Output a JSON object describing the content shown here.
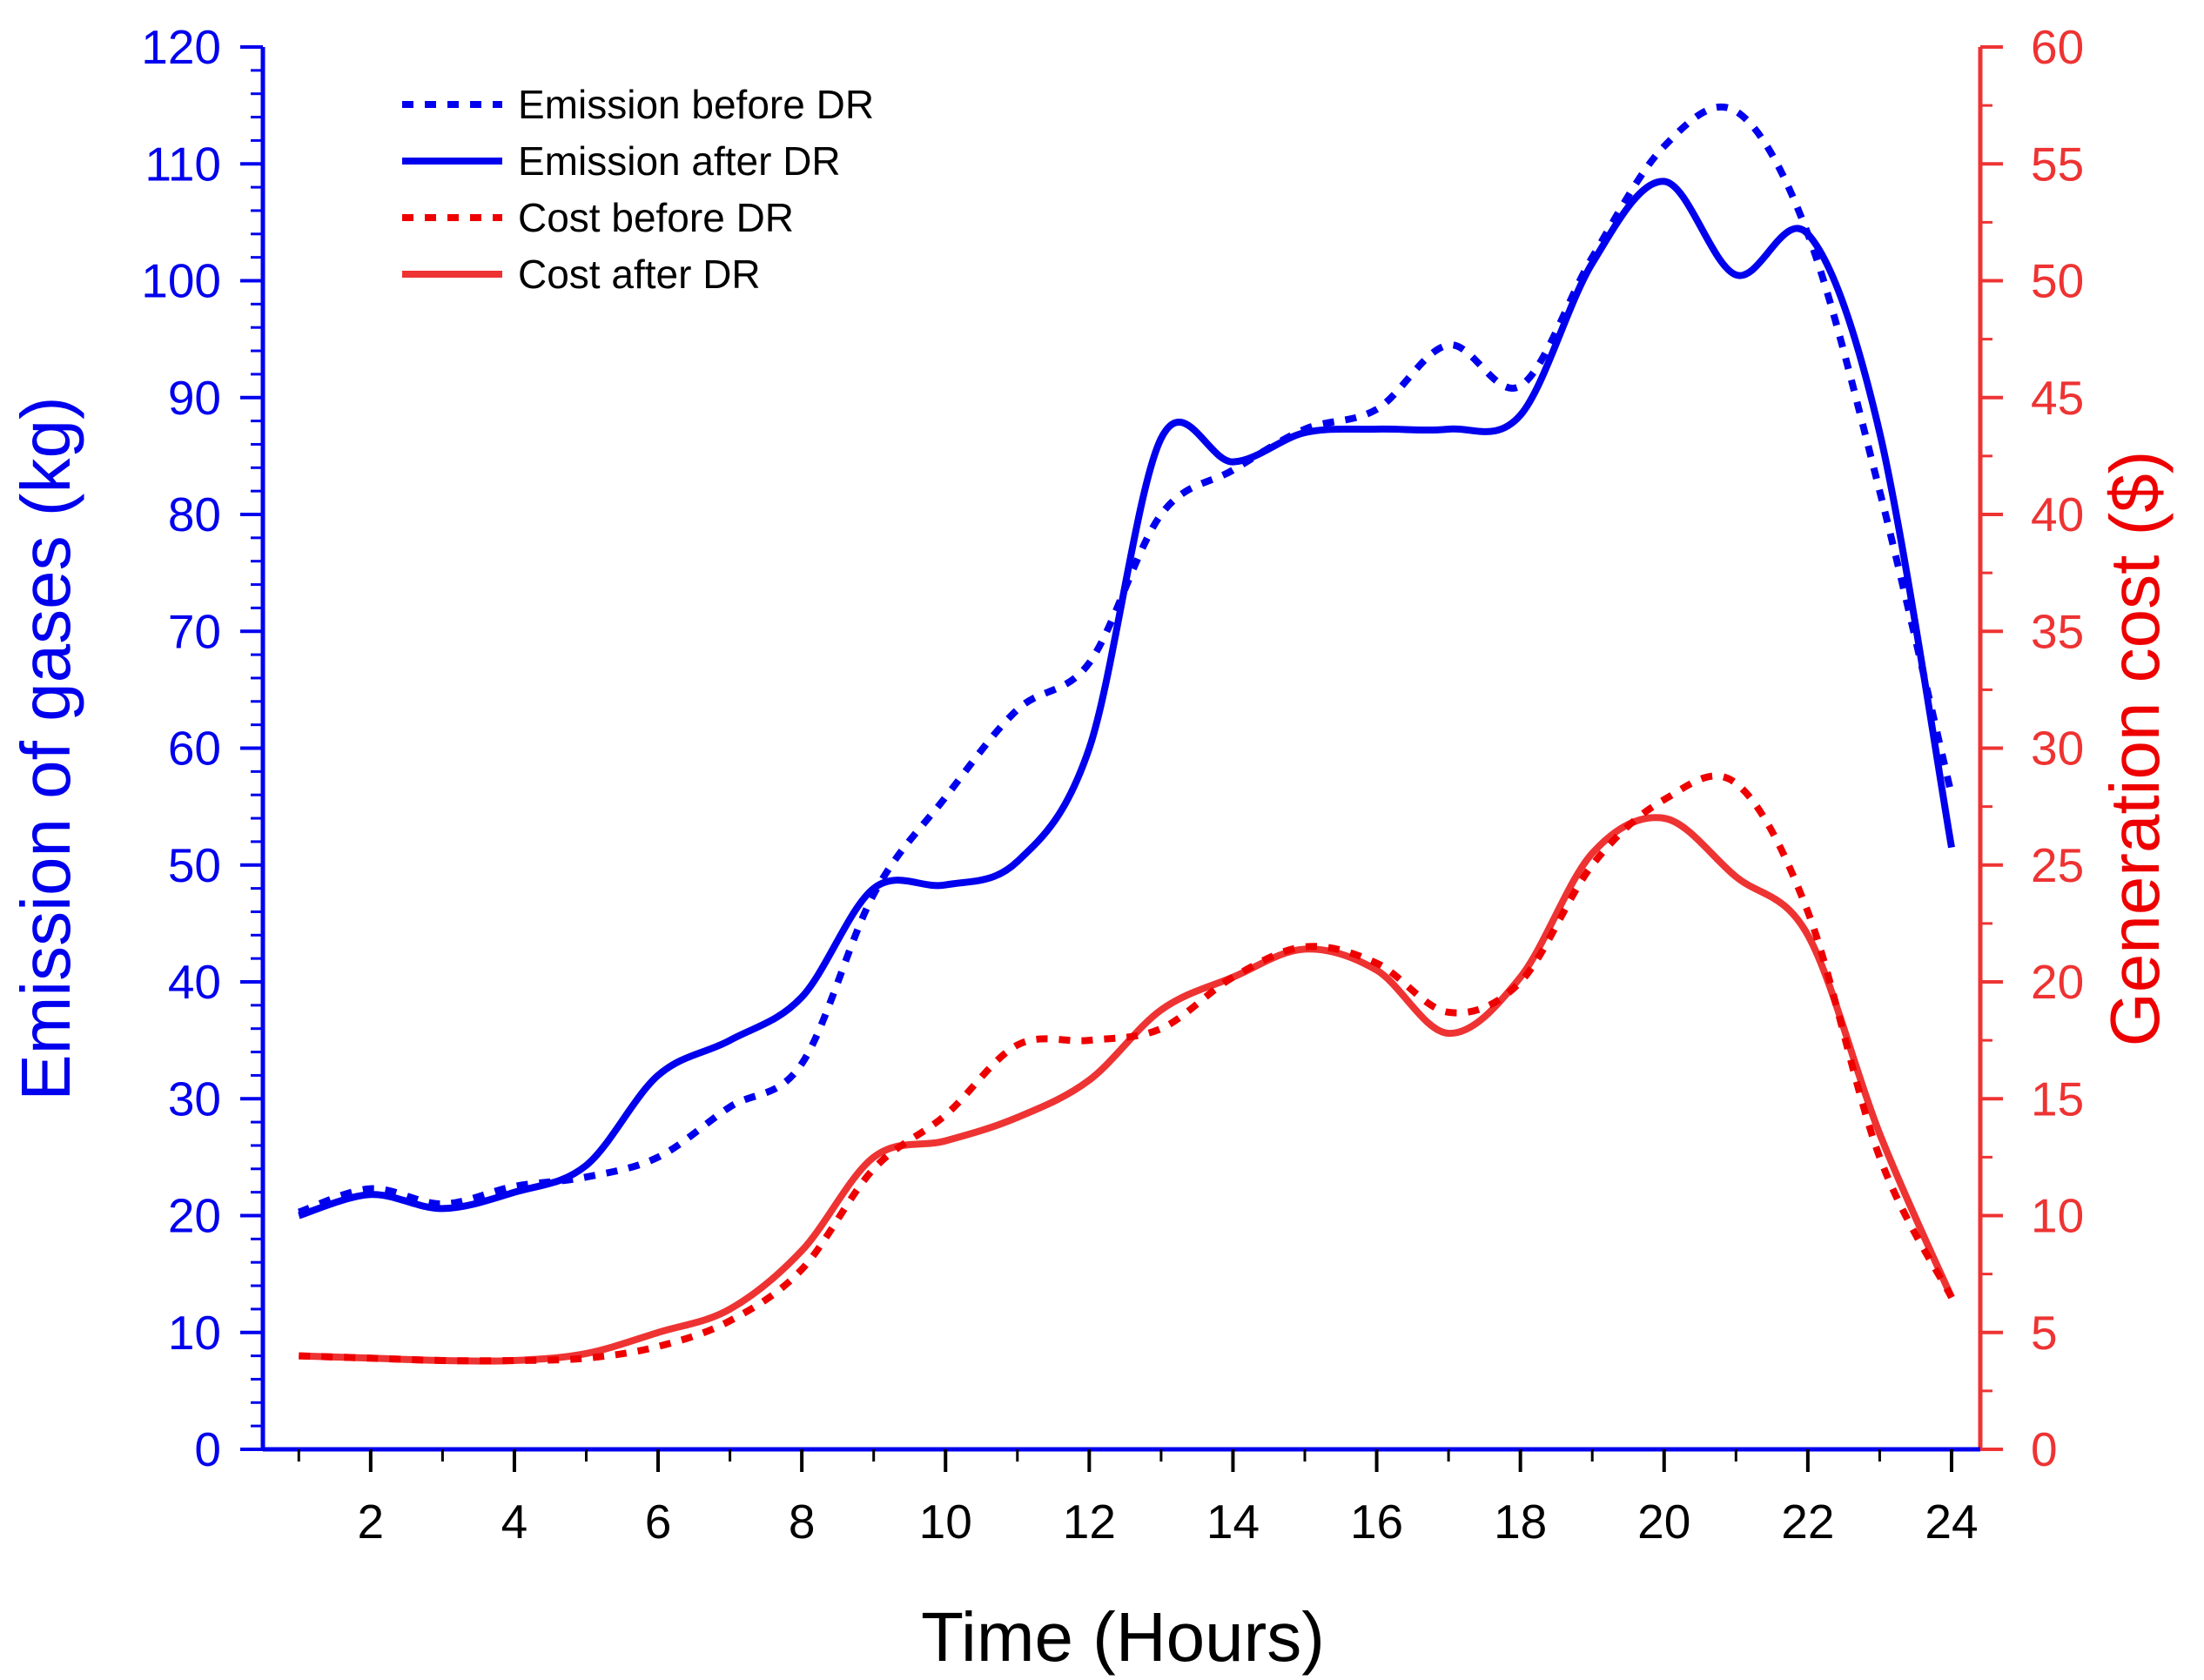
{
  "chart_data": {
    "type": "line",
    "title": "",
    "xlabel": "Time (Hours)",
    "ylabel_left": "Emission of  gases (kg)",
    "ylabel_right": "Generation cost ($)",
    "x": [
      1,
      2,
      3,
      4,
      5,
      6,
      7,
      8,
      9,
      10,
      11,
      12,
      13,
      14,
      15,
      16,
      17,
      18,
      19,
      20,
      21,
      22,
      23,
      24
    ],
    "xlim": [
      0.5,
      24.4
    ],
    "xticks": [
      "2",
      "4",
      "6",
      "8",
      "10",
      "12",
      "14",
      "16",
      "18",
      "20",
      "22",
      "24"
    ],
    "ylim_left": [
      0,
      120
    ],
    "yticks_left": [
      "0",
      "10",
      "20",
      "30",
      "40",
      "50",
      "60",
      "70",
      "80",
      "90",
      "100",
      "110",
      "120"
    ],
    "ylim_right": [
      0,
      60
    ],
    "yticks_right": [
      "0",
      "5",
      "10",
      "15",
      "20",
      "25",
      "30",
      "35",
      "40",
      "45",
      "50",
      "55",
      "60"
    ],
    "grid": false,
    "legend_position": "top-left",
    "series": [
      {
        "name": "Emission before DR",
        "axis": "left",
        "style": "dotted",
        "color": "#0000ee",
        "values": [
          20.3,
          22.3,
          21.0,
          22.5,
          23.3,
          25.0,
          29.3,
          33.0,
          47.5,
          55.8,
          63.3,
          67.3,
          80.0,
          83.8,
          87.3,
          89.0,
          94.5,
          91.0,
          102.0,
          111.5,
          114.5,
          104.0,
          82.0,
          56.0
        ]
      },
      {
        "name": "Emission after DR",
        "axis": "left",
        "style": "solid",
        "color": "#0000ee",
        "values": [
          20.0,
          21.8,
          20.6,
          22.0,
          24.3,
          32.0,
          35.0,
          38.7,
          48.0,
          48.3,
          50.3,
          60.0,
          86.5,
          84.5,
          87.0,
          87.3,
          87.3,
          88.5,
          101.5,
          108.5,
          100.5,
          104.0,
          87.0,
          51.5
        ]
      },
      {
        "name": "Cost before DR",
        "axis": "right",
        "style": "dotted",
        "color": "#ee0000",
        "values": [
          4.0,
          3.9,
          3.8,
          3.8,
          3.9,
          4.4,
          5.5,
          7.7,
          12.0,
          14.3,
          17.3,
          17.5,
          18.0,
          20.2,
          21.5,
          20.8,
          18.7,
          20.0,
          25.0,
          27.8,
          28.5,
          23.0,
          12.5,
          6.5
        ]
      },
      {
        "name": "Cost after DR",
        "axis": "right",
        "style": "solid",
        "color": "#ee3333",
        "values": [
          4.0,
          3.9,
          3.8,
          3.8,
          4.1,
          5.0,
          6.0,
          8.5,
          12.5,
          13.2,
          14.2,
          15.8,
          18.8,
          20.2,
          21.4,
          20.5,
          17.8,
          20.2,
          25.5,
          27.0,
          24.5,
          22.0,
          13.5,
          6.5
        ]
      }
    ]
  }
}
